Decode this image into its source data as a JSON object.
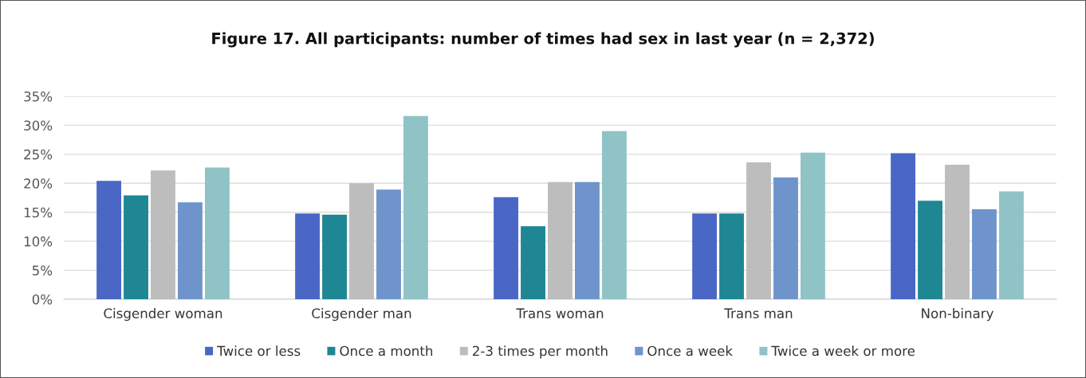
{
  "chart_data": {
    "type": "bar",
    "title": "Figure 17. All participants: number of times had sex in last year (n = 2,372)",
    "categories": [
      "Cisgender woman",
      "Cisgender man",
      "Trans woman",
      "Trans man",
      "Non-binary"
    ],
    "series": [
      {
        "name": "Twice or less",
        "color": "#4a67c6",
        "values": [
          20.4,
          14.8,
          17.6,
          14.8,
          25.2
        ]
      },
      {
        "name": "Once a month",
        "color": "#1e8793",
        "values": [
          17.9,
          14.6,
          12.6,
          14.8,
          17.0
        ]
      },
      {
        "name": "2-3 times per month",
        "color": "#bdbdbd",
        "values": [
          22.2,
          20.0,
          20.2,
          23.6,
          23.2
        ]
      },
      {
        "name": "Once a week",
        "color": "#6e94cb",
        "values": [
          16.7,
          18.9,
          20.2,
          21.0,
          15.5
        ]
      },
      {
        "name": "Twice a week or more",
        "color": "#8fc3c6",
        "values": [
          22.7,
          31.6,
          29.0,
          25.3,
          18.6
        ]
      }
    ],
    "ylim": [
      0,
      35
    ],
    "yticks": [
      {
        "value": 0,
        "label": "0%"
      },
      {
        "value": 5,
        "label": "5%"
      },
      {
        "value": 10,
        "label": "10%"
      },
      {
        "value": 15,
        "label": "15%"
      },
      {
        "value": 20,
        "label": "20%"
      },
      {
        "value": 25,
        "label": "25%"
      },
      {
        "value": 30,
        "label": "30%"
      },
      {
        "value": 35,
        "label": "35%"
      }
    ],
    "grid": "y",
    "legend": "bottom"
  }
}
